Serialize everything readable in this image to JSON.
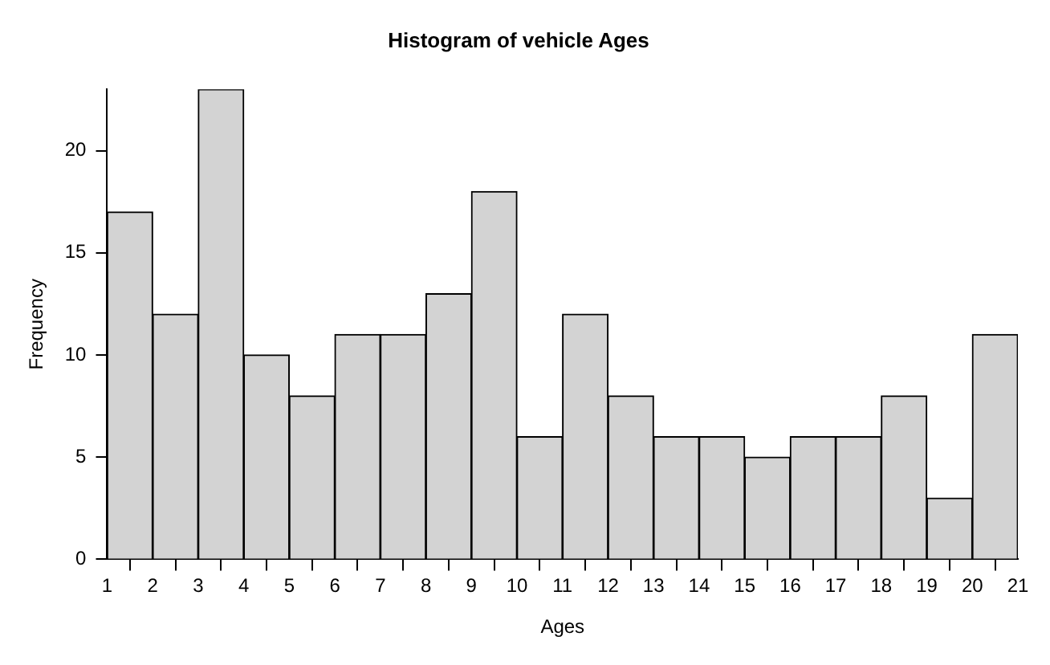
{
  "chart_data": {
    "type": "histogram",
    "title": "Histogram of vehicle Ages",
    "xlabel": "Ages",
    "ylabel": "Frequency",
    "bins": [
      1,
      2,
      3,
      4,
      5,
      6,
      7,
      8,
      9,
      10,
      11,
      12,
      13,
      14,
      15,
      16,
      17,
      18,
      19,
      20,
      21
    ],
    "values": [
      17,
      12,
      23,
      10,
      8,
      11,
      11,
      13,
      18,
      6,
      12,
      8,
      6,
      6,
      5,
      6,
      6,
      8,
      3,
      11
    ],
    "color": "#d3d3d3",
    "xlim": [
      1,
      21
    ],
    "xticks": [
      1,
      2,
      3,
      4,
      5,
      6,
      7,
      8,
      9,
      10,
      11,
      12,
      13,
      14,
      15,
      16,
      17,
      18,
      19,
      20,
      21
    ],
    "ylim": [
      0,
      23
    ],
    "yticks": [
      0,
      5,
      10,
      15,
      20
    ],
    "grid": false,
    "legend": false
  }
}
